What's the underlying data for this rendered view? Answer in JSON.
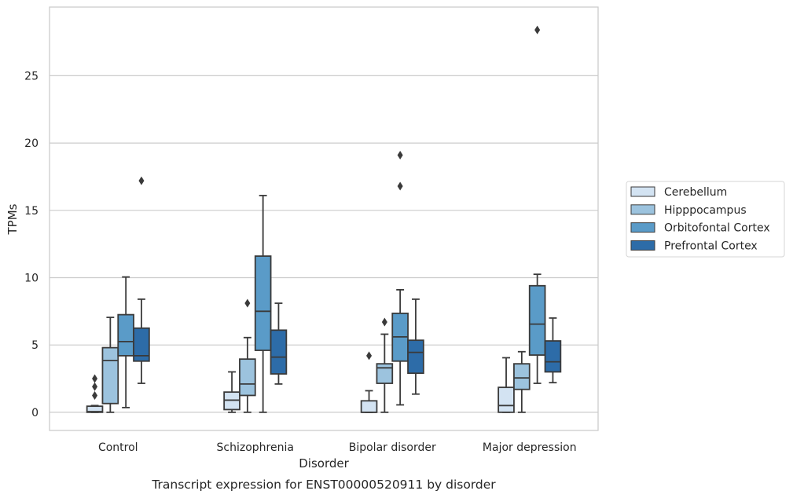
{
  "chart_data": {
    "type": "boxplot",
    "caption": "Transcript expression for ENST00000520911 by disorder",
    "xlabel": "Disorder",
    "ylabel": "TPMs",
    "ylim": [
      -1.35,
      30.1
    ],
    "yticks": [
      0,
      5,
      10,
      15,
      20,
      25
    ],
    "grid": "horizontal",
    "legend_position": "right",
    "categories": [
      "Control",
      "Schizophrenia",
      "Bipolar disorder",
      "Major depression"
    ],
    "series": [
      {
        "name": "Cerebellum",
        "color": "#d3e3f2",
        "boxes": [
          {
            "whisker_low": 0.0,
            "q1": 0.0,
            "median": 0.05,
            "q3": 0.45,
            "whisker_high": 0.5,
            "outliers": [
              1.25,
              1.9,
              2.5
            ]
          },
          {
            "whisker_low": 0.0,
            "q1": 0.2,
            "median": 0.9,
            "q3": 1.5,
            "whisker_high": 3.0,
            "outliers": []
          },
          {
            "whisker_low": 0.0,
            "q1": 0.0,
            "median": 0.0,
            "q3": 0.85,
            "whisker_high": 1.6,
            "outliers": [
              4.2
            ]
          },
          {
            "whisker_low": 0.0,
            "q1": 0.0,
            "median": 0.5,
            "q3": 1.85,
            "whisker_high": 4.05,
            "outliers": []
          }
        ]
      },
      {
        "name": "Hipppocampus",
        "color": "#9cc3de",
        "boxes": [
          {
            "whisker_low": 0.0,
            "q1": 0.65,
            "median": 3.85,
            "q3": 4.8,
            "whisker_high": 7.05,
            "outliers": []
          },
          {
            "whisker_low": 0.0,
            "q1": 1.25,
            "median": 2.1,
            "q3": 3.95,
            "whisker_high": 5.55,
            "outliers": [
              8.1
            ]
          },
          {
            "whisker_low": 0.0,
            "q1": 2.15,
            "median": 3.3,
            "q3": 3.6,
            "whisker_high": 5.8,
            "outliers": [
              6.7
            ]
          },
          {
            "whisker_low": 0.0,
            "q1": 1.7,
            "median": 2.55,
            "q3": 3.6,
            "whisker_high": 4.5,
            "outliers": []
          }
        ]
      },
      {
        "name": "Orbitofontal Cortex",
        "color": "#5a9bc8",
        "boxes": [
          {
            "whisker_low": 0.35,
            "q1": 4.2,
            "median": 5.25,
            "q3": 7.25,
            "whisker_high": 10.05,
            "outliers": []
          },
          {
            "whisker_low": 0.0,
            "q1": 4.6,
            "median": 7.5,
            "q3": 11.6,
            "whisker_high": 16.1,
            "outliers": []
          },
          {
            "whisker_low": 0.55,
            "q1": 3.8,
            "median": 5.6,
            "q3": 7.35,
            "whisker_high": 9.1,
            "outliers": [
              16.8,
              19.1
            ]
          },
          {
            "whisker_low": 2.15,
            "q1": 4.25,
            "median": 6.55,
            "q3": 9.4,
            "whisker_high": 10.25,
            "outliers": [
              28.4
            ]
          }
        ]
      },
      {
        "name": "Prefrontal Cortex",
        "color": "#2d6ca8",
        "boxes": [
          {
            "whisker_low": 2.15,
            "q1": 3.8,
            "median": 4.2,
            "q3": 6.25,
            "whisker_high": 8.4,
            "outliers": [
              17.2
            ]
          },
          {
            "whisker_low": 2.1,
            "q1": 2.85,
            "median": 4.1,
            "q3": 6.1,
            "whisker_high": 8.1,
            "outliers": []
          },
          {
            "whisker_low": 1.35,
            "q1": 2.9,
            "median": 4.45,
            "q3": 5.35,
            "whisker_high": 8.4,
            "outliers": []
          },
          {
            "whisker_low": 2.2,
            "q1": 3.0,
            "median": 3.75,
            "q3": 5.3,
            "whisker_high": 7.0,
            "outliers": []
          }
        ]
      }
    ]
  }
}
